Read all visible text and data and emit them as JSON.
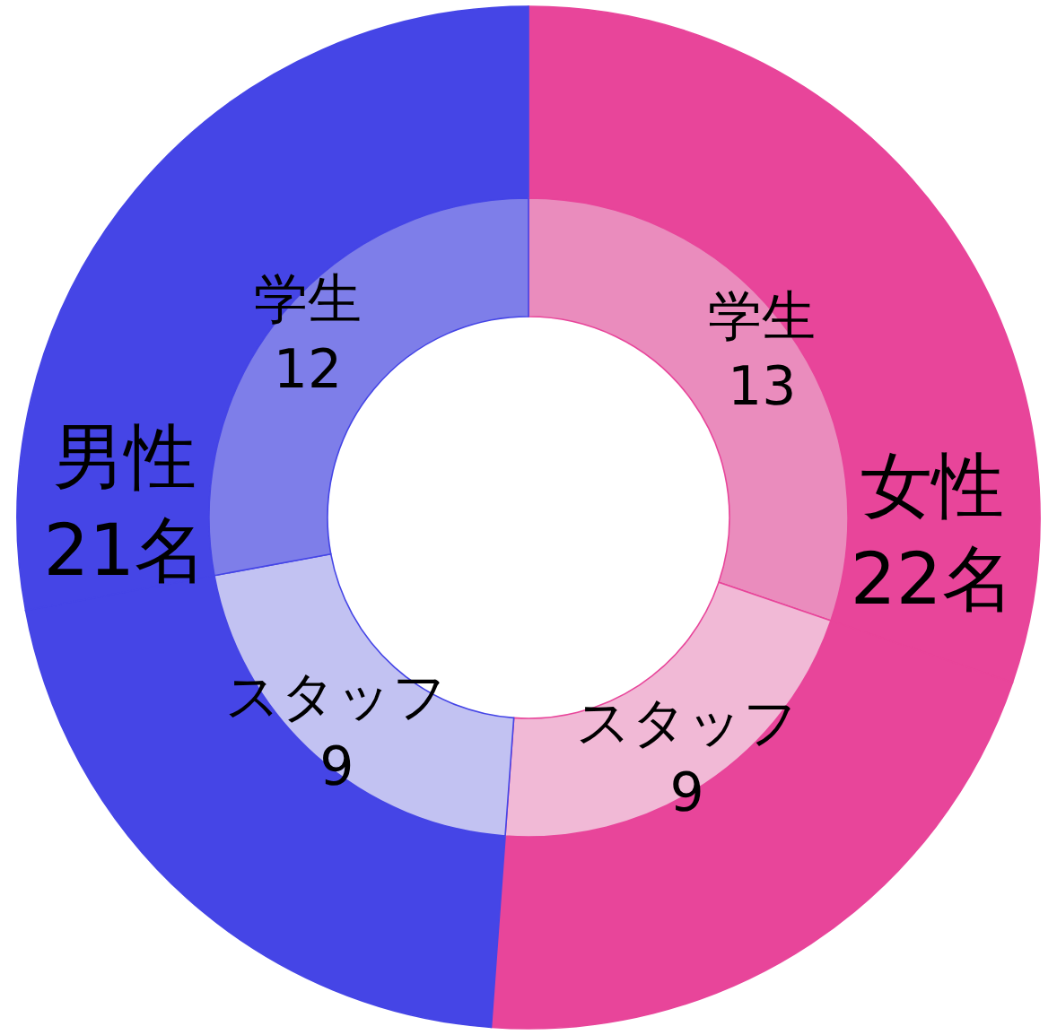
{
  "chart_data": {
    "type": "donut",
    "categories": [
      "学生",
      "スタッフ",
      "スタッフ",
      "学生"
    ],
    "annotations": [
      "女性",
      "男性"
    ],
    "totals": [
      "22名",
      "21名"
    ],
    "series": [
      {
        "values": [
          30.23,
          20.93,
          20.93,
          27.91
        ],
        "colors": [
          "#e8459a",
          "#e8459a",
          "#4545e6",
          "#4545e6"
        ]
      },
      {
        "values": [
          13,
          9,
          9,
          12
        ],
        "data_labels": true,
        "colors": [
          "#ea8cbd",
          "#f1b9d6",
          "#c2c2f2",
          "#7e7ee9"
        ]
      }
    ]
  }
}
